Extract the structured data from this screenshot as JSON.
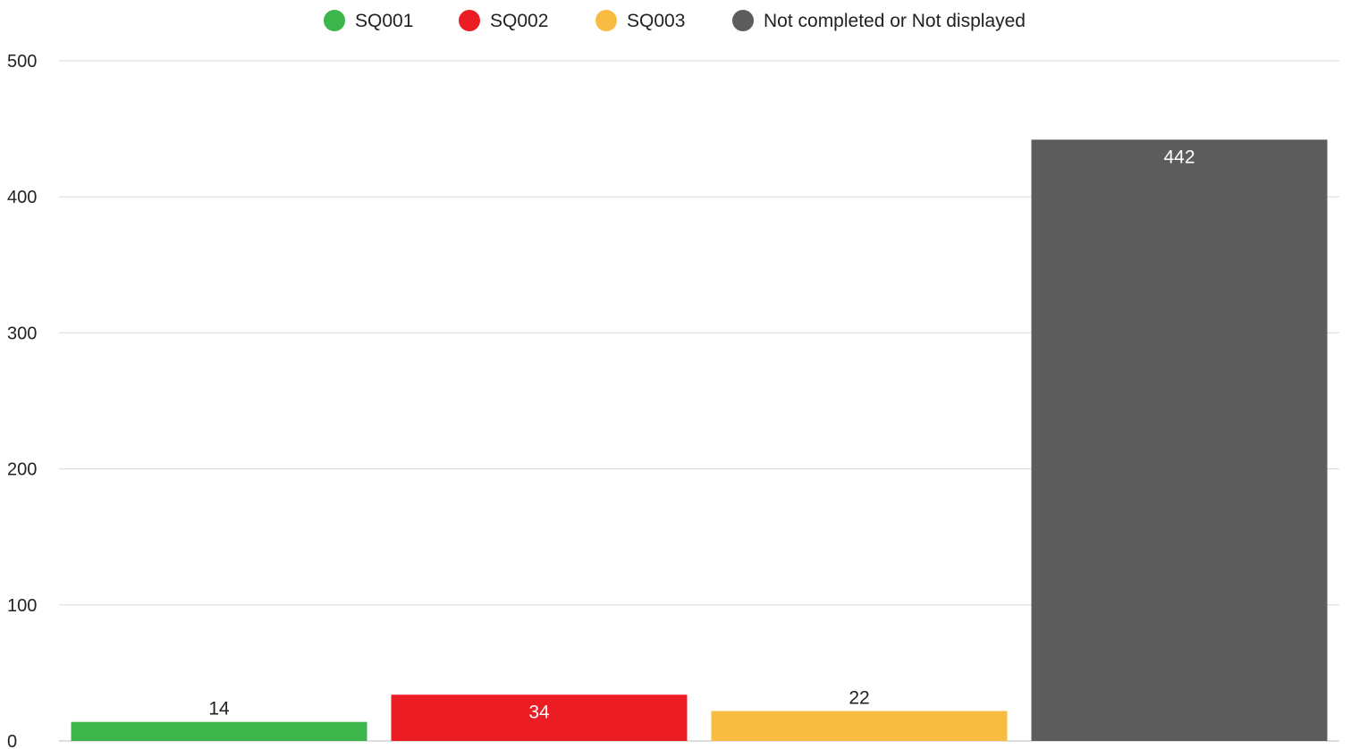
{
  "chart_data": {
    "type": "bar",
    "categories": [
      "SQ001",
      "SQ002",
      "SQ003",
      "Not completed or Not displayed"
    ],
    "values": [
      14,
      34,
      22,
      442
    ],
    "colors": [
      "#3cb54a",
      "#ec1c24",
      "#f9bc42",
      "#5c5c5c"
    ],
    "label_colors": [
      "#222222",
      "#ffffff",
      "#222222",
      "#ffffff"
    ],
    "label_positions": [
      "above",
      "inside",
      "above",
      "inside"
    ],
    "ylim": [
      0,
      500
    ],
    "yticks": [
      0,
      100,
      200,
      300,
      400,
      500
    ],
    "title": "",
    "xlabel": "",
    "ylabel": "",
    "grid": true,
    "legend": {
      "position": "top-center",
      "entries": [
        "SQ001",
        "SQ002",
        "SQ003",
        "Not completed or Not displayed"
      ]
    }
  }
}
